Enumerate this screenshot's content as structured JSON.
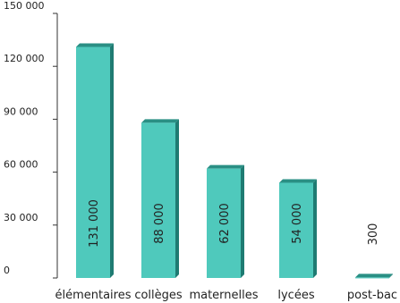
{
  "chart_data": {
    "type": "bar",
    "title": "",
    "xlabel": "",
    "ylabel": "",
    "categories": [
      "élémentaires",
      "collèges",
      "maternelles",
      "lycées",
      "post-bac"
    ],
    "values": [
      131000,
      88000,
      62000,
      54000,
      300
    ],
    "data_labels": [
      "131 000",
      "88 000",
      "62 000",
      "54 000",
      "300"
    ],
    "ylim": [
      0,
      150000
    ],
    "yticks": [
      0,
      30000,
      60000,
      90000,
      120000,
      150000
    ],
    "ytick_labels": [
      "0",
      "30 000",
      "60 000",
      "90 000",
      "120 000",
      "150 000"
    ],
    "grid": false,
    "colors": {
      "bar_face": "#4fc9bc",
      "bar_side": "#1f7b72",
      "bar_top": "#2a8f84",
      "axis": "#333333"
    }
  }
}
